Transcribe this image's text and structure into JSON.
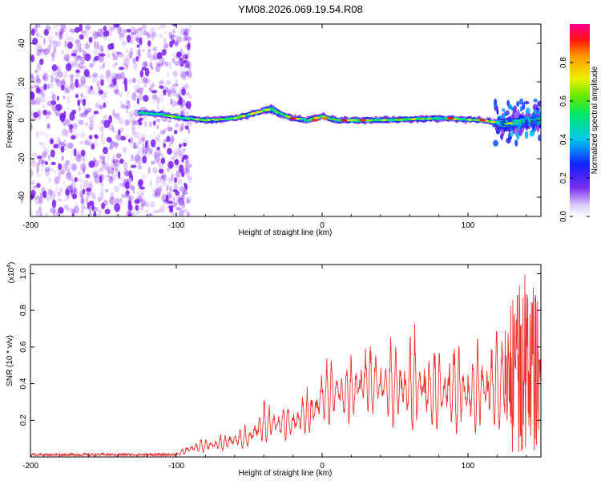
{
  "title": "YM08.2026.069.19.54.R08",
  "chart_data": [
    {
      "type": "heatmap",
      "name": "spectrogram",
      "xlabel": "Height of straight line (km)",
      "ylabel": "Frequency (Hz)",
      "xlim": [
        -200,
        150
      ],
      "ylim": [
        -50,
        50
      ],
      "x_ticks": [
        -200,
        -100,
        0,
        100
      ],
      "y_ticks": [
        -40,
        -20,
        0,
        20,
        40
      ],
      "colorbar": {
        "label": "Normalized spectral amplitude",
        "range": [
          0.0,
          1.0
        ],
        "ticks": [
          "0.0",
          "0.2",
          "0.4",
          "0.6",
          "0.8"
        ]
      },
      "noise_region_x": [
        -200,
        -100
      ],
      "ridge": [
        {
          "x": -125,
          "f": 4
        },
        {
          "x": -110,
          "f": 3
        },
        {
          "x": -95,
          "f": 1
        },
        {
          "x": -80,
          "f": 0
        },
        {
          "x": -60,
          "f": 1
        },
        {
          "x": -45,
          "f": 4
        },
        {
          "x": -35,
          "f": 6
        },
        {
          "x": -28,
          "f": 3
        },
        {
          "x": -20,
          "f": 1
        },
        {
          "x": -10,
          "f": 0
        },
        {
          "x": 0,
          "f": 2
        },
        {
          "x": 10,
          "f": 0
        },
        {
          "x": 40,
          "f": 0
        },
        {
          "x": 80,
          "f": 1
        },
        {
          "x": 110,
          "f": 0
        },
        {
          "x": 125,
          "f": -2
        },
        {
          "x": 135,
          "f": -1
        },
        {
          "x": 150,
          "f": 0
        }
      ],
      "hotspots": [
        {
          "x": -20,
          "f": 1,
          "amplitude": 0.95
        },
        {
          "x": -5,
          "f": 0,
          "amplitude": 0.9
        },
        {
          "x": 2,
          "f": 1,
          "amplitude": 0.85
        },
        {
          "x": 15,
          "f": 0,
          "amplitude": 0.95
        },
        {
          "x": 28,
          "f": 0,
          "amplitude": 0.9
        },
        {
          "x": 88,
          "f": 1,
          "amplitude": 0.95
        },
        {
          "x": 110,
          "f": 0,
          "amplitude": 0.9
        }
      ]
    },
    {
      "type": "line",
      "name": "snr",
      "xlabel": "Height of straight line (km)",
      "ylabel": "SNR (10 * v/v)",
      "multiplier_label": "(x10",
      "multiplier_exp": "4",
      "xlim": [
        -200,
        150
      ],
      "ylim": [
        0,
        1.05
      ],
      "x_ticks": [
        -200,
        -100,
        0,
        100
      ],
      "y_ticks": [
        "0.2",
        "0.4",
        "0.6",
        "0.8",
        "1.0"
      ],
      "color": "#ee3333",
      "envelope": [
        {
          "x": -200,
          "low": 0.005,
          "high": 0.02
        },
        {
          "x": -100,
          "low": 0.005,
          "high": 0.02
        },
        {
          "x": -90,
          "low": 0.01,
          "high": 0.08
        },
        {
          "x": -70,
          "low": 0.02,
          "high": 0.12
        },
        {
          "x": -50,
          "low": 0.03,
          "high": 0.18
        },
        {
          "x": -40,
          "low": 0.04,
          "high": 0.3
        },
        {
          "x": -20,
          "low": 0.06,
          "high": 0.3
        },
        {
          "x": -5,
          "low": 0.08,
          "high": 0.42
        },
        {
          "x": 0,
          "low": 0.1,
          "high": 0.55
        },
        {
          "x": 20,
          "low": 0.12,
          "high": 0.55
        },
        {
          "x": 30,
          "low": 0.18,
          "high": 0.63
        },
        {
          "x": 45,
          "low": 0.1,
          "high": 0.62
        },
        {
          "x": 60,
          "low": 0.06,
          "high": 0.7
        },
        {
          "x": 80,
          "low": 0.05,
          "high": 0.62
        },
        {
          "x": 100,
          "low": 0.05,
          "high": 0.62
        },
        {
          "x": 120,
          "low": 0.03,
          "high": 0.7
        },
        {
          "x": 135,
          "low": 0.02,
          "high": 0.95
        },
        {
          "x": 142,
          "low": 0.02,
          "high": 1.05
        },
        {
          "x": 150,
          "low": 0.03,
          "high": 0.8
        }
      ]
    }
  ],
  "colors": {
    "axis": "#000000",
    "grid_tick": "#000000",
    "noise": "#7a1ff0"
  }
}
